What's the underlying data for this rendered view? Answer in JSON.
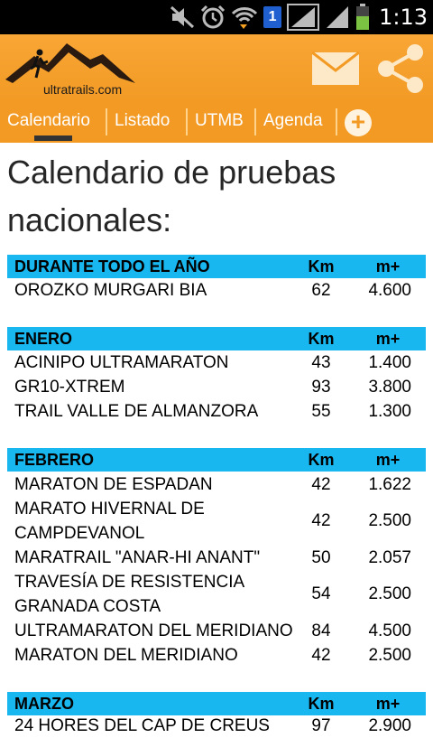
{
  "status": {
    "time": "1:13",
    "notification_count": "1"
  },
  "app": {
    "logo_text": "ultratrails.com"
  },
  "tabs": [
    {
      "label": "Calendario"
    },
    {
      "label": "Listado"
    },
    {
      "label": "UTMB"
    },
    {
      "label": "Agenda"
    }
  ],
  "title": "Calendario de pruebas nacionales:",
  "columns": {
    "km": "Km",
    "mplus": "m+"
  },
  "sections": [
    {
      "name": "DURANTE TODO EL AÑO",
      "rows": [
        {
          "name": "OROZKO MURGARI BIA",
          "km": "62",
          "mplus": "4.600"
        }
      ]
    },
    {
      "name": "ENERO",
      "rows": [
        {
          "name": "ACINIPO ULTRAMARATON",
          "km": "43",
          "mplus": "1.400"
        },
        {
          "name": "GR10-XTREM",
          "km": "93",
          "mplus": "3.800"
        },
        {
          "name": "TRAIL VALLE DE ALMANZORA",
          "km": "55",
          "mplus": "1.300"
        }
      ]
    },
    {
      "name": "FEBRERO",
      "rows": [
        {
          "name": "MARATON DE ESPADAN",
          "km": "42",
          "mplus": "1.622"
        },
        {
          "name": "MARATO HIVERNAL DE CAMPDEVANOL",
          "km": "42",
          "mplus": "2.500"
        },
        {
          "name": "MARATRAIL \"ANAR-HI ANANT\"",
          "km": "50",
          "mplus": "2.057"
        },
        {
          "name": "TRAVESÍA DE RESISTENCIA GRANADA COSTA",
          "km": "54",
          "mplus": "2.500"
        },
        {
          "name": "ULTRAMARATON DEL MERIDIANO",
          "km": "84",
          "mplus": "4.500"
        },
        {
          "name": "MARATON DEL MERIDIANO",
          "km": "42",
          "mplus": "2.500"
        }
      ]
    },
    {
      "name": "MARZO",
      "rows": [
        {
          "name": "24 HORES DEL CAP DE CREUS",
          "km": "97",
          "mplus": "2.900"
        }
      ]
    }
  ],
  "colors": {
    "header": "#f29a24",
    "section": "#19b7ef"
  }
}
